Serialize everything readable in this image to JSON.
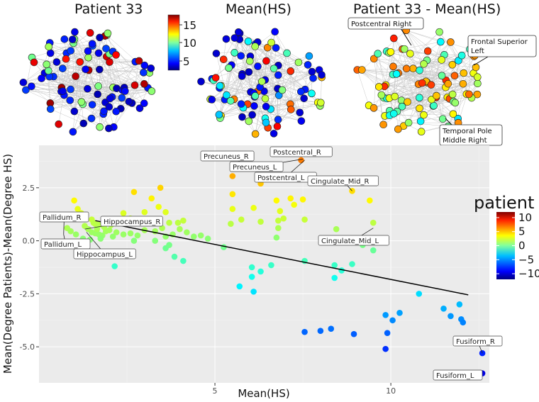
{
  "networks": {
    "titles": [
      "Patient 33",
      "Mean(HS)",
      "Patient 33 - Mean(HS)"
    ],
    "colorbar_ticks": [
      "15",
      "10",
      "5"
    ],
    "callouts": [
      "Postcentral Right",
      "Frontal Superior Left",
      "Temporal Pole Middle Right"
    ]
  },
  "chart_data": {
    "type": "scatter",
    "xlabel": "Mean(HS)",
    "ylabel": "Mean(Degree Patients)-Mean(Degree HS)",
    "xlim": [
      0,
      12.8
    ],
    "ylim": [
      -6.7,
      4.5
    ],
    "xticks": [
      5,
      10
    ],
    "yticks": [
      -5.0,
      -2.5,
      0.0,
      2.5
    ],
    "ytick_labels": [
      "-5.0",
      "-2.5",
      "0.0",
      "2.5"
    ],
    "legend_title": "patient",
    "legend_ticks": [
      10,
      5,
      0,
      -5,
      -10
    ],
    "legend_placement": "right",
    "trend_line": {
      "x": [
        1.6,
        12.2
      ],
      "y": [
        0.95,
        -2.55
      ]
    },
    "labels": [
      {
        "text": "Precuneus_R",
        "x": 5.95,
        "y": 3.55
      },
      {
        "text": "Postcentral_R",
        "x": 7.15,
        "y": 4.1
      },
      {
        "text": "Precuneus_L",
        "x": 7.5,
        "y": 3.85
      },
      {
        "text": "Postcentral_L",
        "x": 7.55,
        "y": 3.8
      },
      {
        "text": "Cingulate_Mid_R",
        "x": 8.9,
        "y": 2.35
      },
      {
        "text": "Pallidum_R",
        "x": 0.7,
        "y": 0.3
      },
      {
        "text": "Hippocampus_R",
        "x": 1.3,
        "y": 0.55
      },
      {
        "text": "Pallidum_L",
        "x": 0.7,
        "y": 0.3
      },
      {
        "text": "Hippocampus_L",
        "x": 1.35,
        "y": 0.4
      },
      {
        "text": "Cingulate_Mid_L",
        "x": 9.5,
        "y": 0.6
      },
      {
        "text": "Fusiform_R",
        "x": 12.6,
        "y": -5.3
      },
      {
        "text": "Fusiform_L",
        "x": 12.6,
        "y": -6.25
      }
    ],
    "points": [
      [
        1.0,
        1.9
      ],
      [
        1.1,
        1.5
      ],
      [
        1.2,
        1.3
      ],
      [
        1.3,
        1.2
      ],
      [
        1.5,
        1.0
      ],
      [
        1.55,
        0.85
      ],
      [
        1.6,
        0.8
      ],
      [
        1.7,
        0.75
      ],
      [
        1.3,
        0.7
      ],
      [
        1.4,
        0.55
      ],
      [
        1.5,
        0.4
      ],
      [
        1.6,
        0.35
      ],
      [
        1.7,
        0.3
      ],
      [
        1.8,
        0.25
      ],
      [
        1.9,
        0.45
      ],
      [
        2.0,
        0.5
      ],
      [
        2.1,
        0.2
      ],
      [
        0.8,
        0.6
      ],
      [
        0.9,
        0.45
      ],
      [
        1.05,
        0.3
      ],
      [
        1.25,
        0.1
      ],
      [
        1.45,
        0.05
      ],
      [
        1.65,
        0.55
      ],
      [
        1.75,
        0.1
      ],
      [
        1.85,
        0.65
      ],
      [
        2.05,
        0.75
      ],
      [
        2.2,
        0.4
      ],
      [
        2.4,
        0.3
      ],
      [
        2.6,
        0.35
      ],
      [
        2.8,
        0.25
      ],
      [
        3.0,
        0.5
      ],
      [
        3.3,
        0.45
      ],
      [
        3.5,
        0.6
      ],
      [
        3.6,
        0.2
      ],
      [
        3.8,
        0.3
      ],
      [
        4.0,
        0.55
      ],
      [
        4.2,
        0.4
      ],
      [
        4.6,
        0.25
      ],
      [
        2.7,
        2.3
      ],
      [
        3.0,
        1.35
      ],
      [
        3.4,
        1.6
      ],
      [
        3.6,
        1.35
      ],
      [
        3.7,
        0.85
      ],
      [
        3.95,
        0.85
      ],
      [
        4.1,
        0.95
      ],
      [
        3.2,
        2.0
      ],
      [
        2.85,
        0.9
      ],
      [
        2.6,
        1.05
      ],
      [
        3.3,
        0.0
      ],
      [
        2.7,
        0.0
      ],
      [
        3.6,
        -0.35
      ],
      [
        3.85,
        -0.75
      ],
      [
        4.1,
        -0.95
      ],
      [
        3.7,
        -0.2
      ],
      [
        2.15,
        -1.2
      ],
      [
        3.45,
        2.5
      ],
      [
        2.4,
        1.3
      ],
      [
        4.4,
        0.2
      ],
      [
        4.8,
        0.1
      ],
      [
        5.25,
        -0.3
      ],
      [
        5.5,
        3.05
      ],
      [
        5.5,
        2.2
      ],
      [
        5.5,
        1.5
      ],
      [
        5.75,
        1.0
      ],
      [
        5.45,
        0.8
      ],
      [
        6.1,
        1.55
      ],
      [
        6.3,
        0.9
      ],
      [
        6.05,
        -1.25
      ],
      [
        6.3,
        -1.45
      ],
      [
        6.05,
        -1.7
      ],
      [
        5.7,
        -2.15
      ],
      [
        6.1,
        -2.4
      ],
      [
        6.6,
        -1.15
      ],
      [
        6.8,
        0.6
      ],
      [
        6.75,
        0.15
      ],
      [
        6.8,
        0.95
      ],
      [
        6.85,
        1.4
      ],
      [
        6.95,
        1.05
      ],
      [
        7.25,
        1.7
      ],
      [
        6.75,
        1.9
      ],
      [
        7.5,
        1.95
      ],
      [
        7.55,
        1.0
      ],
      [
        8.45,
        0.55
      ],
      [
        8.6,
        -1.4
      ],
      [
        8.9,
        -1.1
      ],
      [
        8.4,
        -1.15
      ],
      [
        8.4,
        -1.75
      ],
      [
        7.55,
        -0.95
      ],
      [
        8.35,
        2.75
      ],
      [
        9.4,
        1.9
      ],
      [
        9.5,
        0.85
      ],
      [
        9.5,
        -0.45
      ],
      [
        9.2,
        -0.2
      ],
      [
        9.9,
        -4.35
      ],
      [
        9.85,
        -3.5
      ],
      [
        10.05,
        -3.75
      ],
      [
        10.25,
        -3.4
      ],
      [
        9.85,
        -5.1
      ],
      [
        8.95,
        -4.4
      ],
      [
        8.3,
        -4.15
      ],
      [
        8.0,
        -4.25
      ],
      [
        7.55,
        -4.3
      ],
      [
        10.8,
        -2.5
      ],
      [
        11.5,
        -3.2
      ],
      [
        11.7,
        -3.55
      ],
      [
        12.0,
        -3.7
      ],
      [
        12.05,
        -3.85
      ],
      [
        11.95,
        -3.0
      ],
      [
        12.6,
        -5.3
      ],
      [
        12.6,
        -6.25
      ],
      [
        6.3,
        2.7
      ],
      [
        7.1,
        4.1
      ],
      [
        7.45,
        3.8
      ],
      [
        5.95,
        3.55
      ],
      [
        8.9,
        2.35
      ],
      [
        7.15,
        2.0
      ]
    ]
  }
}
